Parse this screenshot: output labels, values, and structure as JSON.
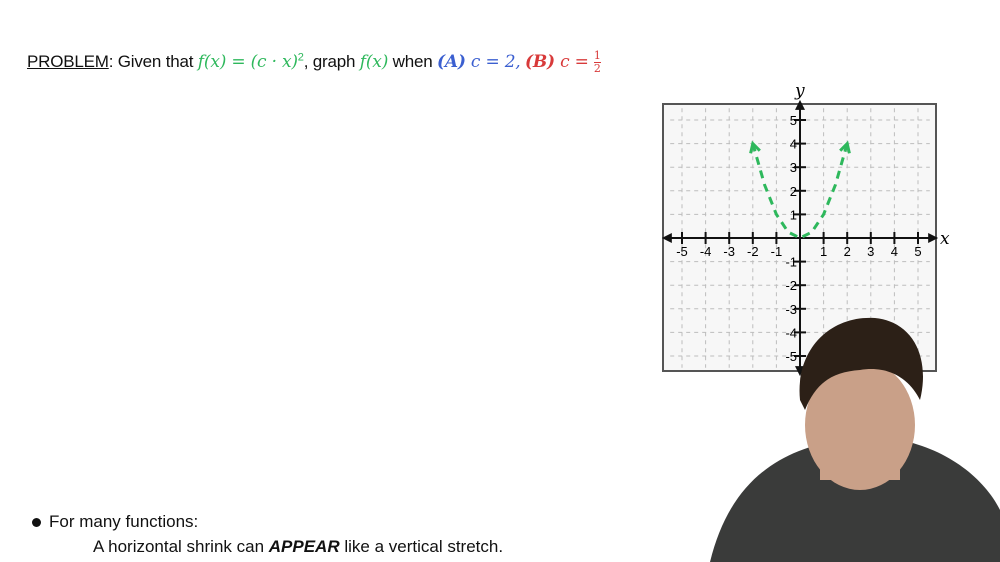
{
  "problem": {
    "label": "PROBLEM",
    "given": ": Given that ",
    "func": "f(x)",
    "equals": " = ",
    "expr": "(c · x)",
    "exponent": "2",
    "graph_text": ", graph ",
    "func2": "f(x)",
    "when": " when ",
    "case_a_label": "(A)",
    "case_a_eq": " c = 2,",
    "case_b_label": "(B)",
    "case_b_eq": " c = ",
    "case_b_num": "1",
    "case_b_den": "2"
  },
  "colors": {
    "function": "#2eb85c",
    "case_a": "#3b5fd0",
    "case_b": "#d83a3a",
    "grid": "#bdbdbd"
  },
  "notes": {
    "bullet": "For many functions:",
    "line_pre": "A horizontal shrink can ",
    "line_emph": "APPEAR",
    "line_post": " like a vertical stretch."
  },
  "chart_data": {
    "type": "line",
    "xlabel": "x",
    "ylabel": "y",
    "xlim": [
      -5,
      5
    ],
    "ylim": [
      -5,
      5
    ],
    "x_ticks": [
      -5,
      -4,
      -3,
      -2,
      -1,
      1,
      2,
      3,
      4,
      5
    ],
    "y_ticks": [
      5,
      4,
      3,
      2,
      1,
      -1,
      -2,
      -3,
      -4,
      -5
    ],
    "grid": true,
    "series": [
      {
        "style": "dashed",
        "color": "#2eb85c",
        "arrows": "both-ends",
        "x": [
          -2,
          -1.5,
          -1,
          -0.5,
          0,
          0.5,
          1,
          1.5,
          2
        ],
        "y": [
          4,
          2.25,
          1,
          0.25,
          0,
          0.25,
          1,
          2.25,
          4
        ]
      }
    ]
  }
}
